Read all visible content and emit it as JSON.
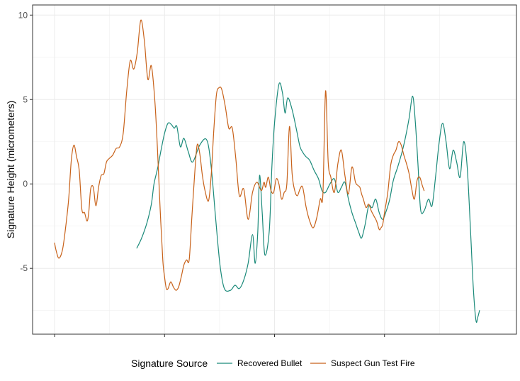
{
  "chart_data": {
    "type": "line",
    "ylabel": "Signature Height (micrometers)",
    "xlabel": "",
    "ylim": [
      -8.9,
      10.6
    ],
    "xlim": [
      -0.05,
      1.05
    ],
    "yticks": [
      -5,
      0,
      5,
      10
    ],
    "ytick_labels": [
      "-5",
      "0",
      "5",
      "10"
    ],
    "xticks": [
      0,
      0.25,
      0.5,
      0.75
    ],
    "grid": true,
    "legend": {
      "title": "Signature Source",
      "position": "bottom"
    },
    "series": [
      {
        "name": "Recovered Bullet",
        "color": "#1b8a7a",
        "x": [
          0.187,
          0.198,
          0.21,
          0.22,
          0.226,
          0.234,
          0.242,
          0.25,
          0.258,
          0.266,
          0.272,
          0.278,
          0.286,
          0.294,
          0.304,
          0.314,
          0.33,
          0.346,
          0.356,
          0.366,
          0.376,
          0.386,
          0.4,
          0.41,
          0.42,
          0.43,
          0.44,
          0.45,
          0.456,
          0.462,
          0.466,
          0.472,
          0.478,
          0.488,
          0.494,
          0.5,
          0.51,
          0.518,
          0.524,
          0.53,
          0.54,
          0.55,
          0.558,
          0.566,
          0.572,
          0.58,
          0.59,
          0.6,
          0.608,
          0.616,
          0.626,
          0.636,
          0.644,
          0.652,
          0.66,
          0.668,
          0.676,
          0.684,
          0.692,
          0.698,
          0.706,
          0.714,
          0.722,
          0.73,
          0.738,
          0.746,
          0.754,
          0.762,
          0.77,
          0.78,
          0.79,
          0.798,
          0.806,
          0.814,
          0.82,
          0.826,
          0.832,
          0.84,
          0.85,
          0.858,
          0.866,
          0.874,
          0.882,
          0.89,
          0.898,
          0.906,
          0.914,
          0.922,
          0.93,
          0.938,
          0.946,
          0.952,
          0.958,
          0.962,
          0.966
        ],
        "y": [
          -3.8,
          -3.2,
          -2.3,
          -1.2,
          0.0,
          0.9,
          2.0,
          3.0,
          3.6,
          3.5,
          3.3,
          3.4,
          2.2,
          2.7,
          1.9,
          1.3,
          2.3,
          2.6,
          1.0,
          -2.0,
          -4.8,
          -6.2,
          -6.3,
          -6.0,
          -6.2,
          -5.7,
          -4.7,
          -3.0,
          -4.7,
          -2.8,
          0.5,
          -1.7,
          -4.2,
          -2.8,
          1.0,
          3.6,
          5.9,
          5.4,
          4.2,
          5.1,
          4.4,
          3.2,
          2.2,
          1.8,
          1.6,
          1.4,
          0.8,
          0.3,
          -0.4,
          -0.5,
          0.0,
          0.3,
          -0.5,
          -0.2,
          0.1,
          -0.9,
          -1.7,
          -2.3,
          -2.9,
          -3.2,
          -2.4,
          -1.3,
          -1.4,
          -0.9,
          -1.7,
          -2.1,
          -1.6,
          -0.9,
          0.2,
          1.0,
          1.9,
          2.8,
          3.9,
          5.2,
          3.7,
          1.2,
          -1.5,
          -1.6,
          -0.9,
          -1.3,
          0.4,
          2.4,
          3.6,
          2.5,
          0.9,
          2.0,
          1.3,
          0.4,
          2.5,
          1.0,
          -3.0,
          -6.2,
          -8.1,
          -7.9,
          -7.5
        ]
      },
      {
        "name": "Suspect Gun Test Fire",
        "color": "#c8621a",
        "x": [
          0.0,
          0.004,
          0.01,
          0.018,
          0.025,
          0.032,
          0.038,
          0.044,
          0.05,
          0.056,
          0.062,
          0.068,
          0.074,
          0.078,
          0.082,
          0.088,
          0.094,
          0.1,
          0.106,
          0.112,
          0.118,
          0.124,
          0.132,
          0.14,
          0.148,
          0.156,
          0.164,
          0.172,
          0.18,
          0.188,
          0.196,
          0.204,
          0.212,
          0.22,
          0.228,
          0.234,
          0.24,
          0.246,
          0.25,
          0.254,
          0.258,
          0.264,
          0.27,
          0.276,
          0.282,
          0.288,
          0.294,
          0.3,
          0.306,
          0.312,
          0.318,
          0.324,
          0.33,
          0.336,
          0.342,
          0.35,
          0.356,
          0.362,
          0.368,
          0.374,
          0.38,
          0.388,
          0.396,
          0.404,
          0.412,
          0.42,
          0.43,
          0.44,
          0.45,
          0.46,
          0.47,
          0.476,
          0.48,
          0.486,
          0.492,
          0.498,
          0.504,
          0.51,
          0.516,
          0.522,
          0.528,
          0.534,
          0.54,
          0.546,
          0.552,
          0.558,
          0.564,
          0.572,
          0.58,
          0.588,
          0.596,
          0.604,
          0.61,
          0.616,
          0.622,
          0.628,
          0.636,
          0.644,
          0.652,
          0.66,
          0.668,
          0.676,
          0.684,
          0.69,
          0.694,
          0.698,
          0.702,
          0.708,
          0.714,
          0.72,
          0.726,
          0.732,
          0.738,
          0.742,
          0.746,
          0.75,
          0.754,
          0.758,
          0.764,
          0.77,
          0.776,
          0.782,
          0.788,
          0.794,
          0.8,
          0.806,
          0.812,
          0.818,
          0.824,
          0.83,
          0.836,
          0.84
        ],
        "y": [
          -3.5,
          -4.0,
          -4.4,
          -3.9,
          -2.6,
          -0.9,
          1.4,
          2.3,
          1.6,
          0.8,
          -1.5,
          -1.7,
          -2.2,
          -1.6,
          -0.3,
          -0.2,
          -1.3,
          -0.2,
          0.5,
          0.6,
          1.3,
          1.5,
          1.7,
          2.1,
          2.2,
          3.0,
          5.5,
          7.3,
          6.8,
          7.8,
          9.7,
          8.5,
          6.2,
          7.0,
          4.9,
          2.0,
          -1.5,
          -4.5,
          -5.5,
          -6.2,
          -6.2,
          -5.8,
          -6.1,
          -6.3,
          -6.1,
          -5.5,
          -4.8,
          -4.5,
          -4.5,
          -2.0,
          0.4,
          2.3,
          1.8,
          0.5,
          -0.4,
          -1.0,
          0.5,
          3.2,
          5.3,
          5.7,
          5.6,
          4.6,
          3.3,
          3.3,
          1.5,
          -0.7,
          -0.3,
          -2.1,
          -0.5,
          0.1,
          -0.4,
          0.1,
          -0.2,
          0.4,
          -0.4,
          -0.5,
          0.3,
          0.0,
          -0.9,
          -0.5,
          0.0,
          3.4,
          0.6,
          -0.4,
          -0.7,
          -0.3,
          -0.2,
          -1.4,
          -2.2,
          -2.6,
          -2.0,
          -0.9,
          -0.6,
          5.5,
          1.3,
          0.4,
          -0.5,
          1.2,
          2.0,
          0.5,
          -0.6,
          1.0,
          0.1,
          -0.1,
          -0.2,
          -0.6,
          -0.9,
          -1.4,
          -1.2,
          -1.6,
          -1.9,
          -2.2,
          -2.7,
          -2.6,
          -2.4,
          -1.7,
          -1.1,
          -0.4,
          1.1,
          1.7,
          2.0,
          2.5,
          2.3,
          1.7,
          1.2,
          0.6,
          -0.3,
          -0.9,
          0.2,
          0.4,
          -0.1,
          -0.4
        ]
      }
    ]
  }
}
